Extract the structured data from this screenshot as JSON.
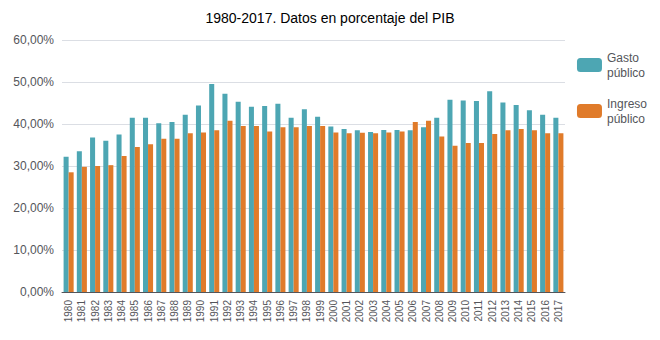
{
  "chart_data": {
    "type": "bar",
    "title": "1980-2017. Datos en porcentaje del PIB",
    "categories": [
      "1980",
      "1981",
      "1982",
      "1983",
      "1984",
      "1985",
      "1986",
      "1987",
      "1988",
      "1989",
      "1990",
      "1991",
      "1992",
      "1993",
      "1994",
      "1995",
      "1996",
      "1997",
      "1998",
      "1999",
      "2000",
      "2001",
      "2002",
      "2003",
      "2004",
      "2005",
      "2006",
      "2007",
      "2008",
      "2009",
      "2010",
      "2011",
      "2012",
      "2013",
      "2014",
      "2015",
      "2016",
      "2017"
    ],
    "series": [
      {
        "name": "Gasto\npúblico",
        "color": "#4da6b3",
        "values": [
          32.2,
          33.5,
          36.8,
          36.0,
          37.5,
          41.5,
          41.5,
          40.2,
          40.5,
          42.2,
          44.4,
          49.5,
          47.2,
          45.3,
          44.1,
          44.3,
          44.8,
          41.5,
          43.5,
          41.7,
          39.4,
          38.8,
          38.5,
          38.1,
          38.6,
          38.6,
          38.5,
          39.2,
          41.5,
          45.8,
          45.6,
          45.5,
          47.8,
          45.1,
          44.5,
          43.3,
          42.2,
          41.5
        ]
      },
      {
        "name": "Ingreso\npúblico",
        "color": "#e07b2a",
        "values": [
          28.5,
          29.8,
          30.0,
          30.2,
          32.4,
          34.5,
          35.2,
          36.5,
          36.5,
          37.8,
          38.0,
          38.5,
          40.8,
          39.5,
          39.5,
          38.2,
          39.2,
          39.2,
          39.5,
          39.5,
          38.0,
          37.8,
          37.9,
          37.8,
          38.0,
          38.2,
          40.5,
          40.8,
          37.0,
          34.8,
          35.5,
          35.5,
          37.6,
          38.5,
          38.8,
          38.5,
          37.8,
          37.8
        ]
      }
    ],
    "ylim": [
      0,
      60
    ],
    "yticks": [
      {
        "value": 0,
        "label": "0,00%"
      },
      {
        "value": 10,
        "label": "10,00%"
      },
      {
        "value": 20,
        "label": "20,00%"
      },
      {
        "value": 30,
        "label": "30,00%"
      },
      {
        "value": 40,
        "label": "40,00%"
      },
      {
        "value": 50,
        "label": "50,00%"
      },
      {
        "value": 60,
        "label": "60,00%"
      }
    ],
    "grid": true,
    "legend": "right"
  }
}
